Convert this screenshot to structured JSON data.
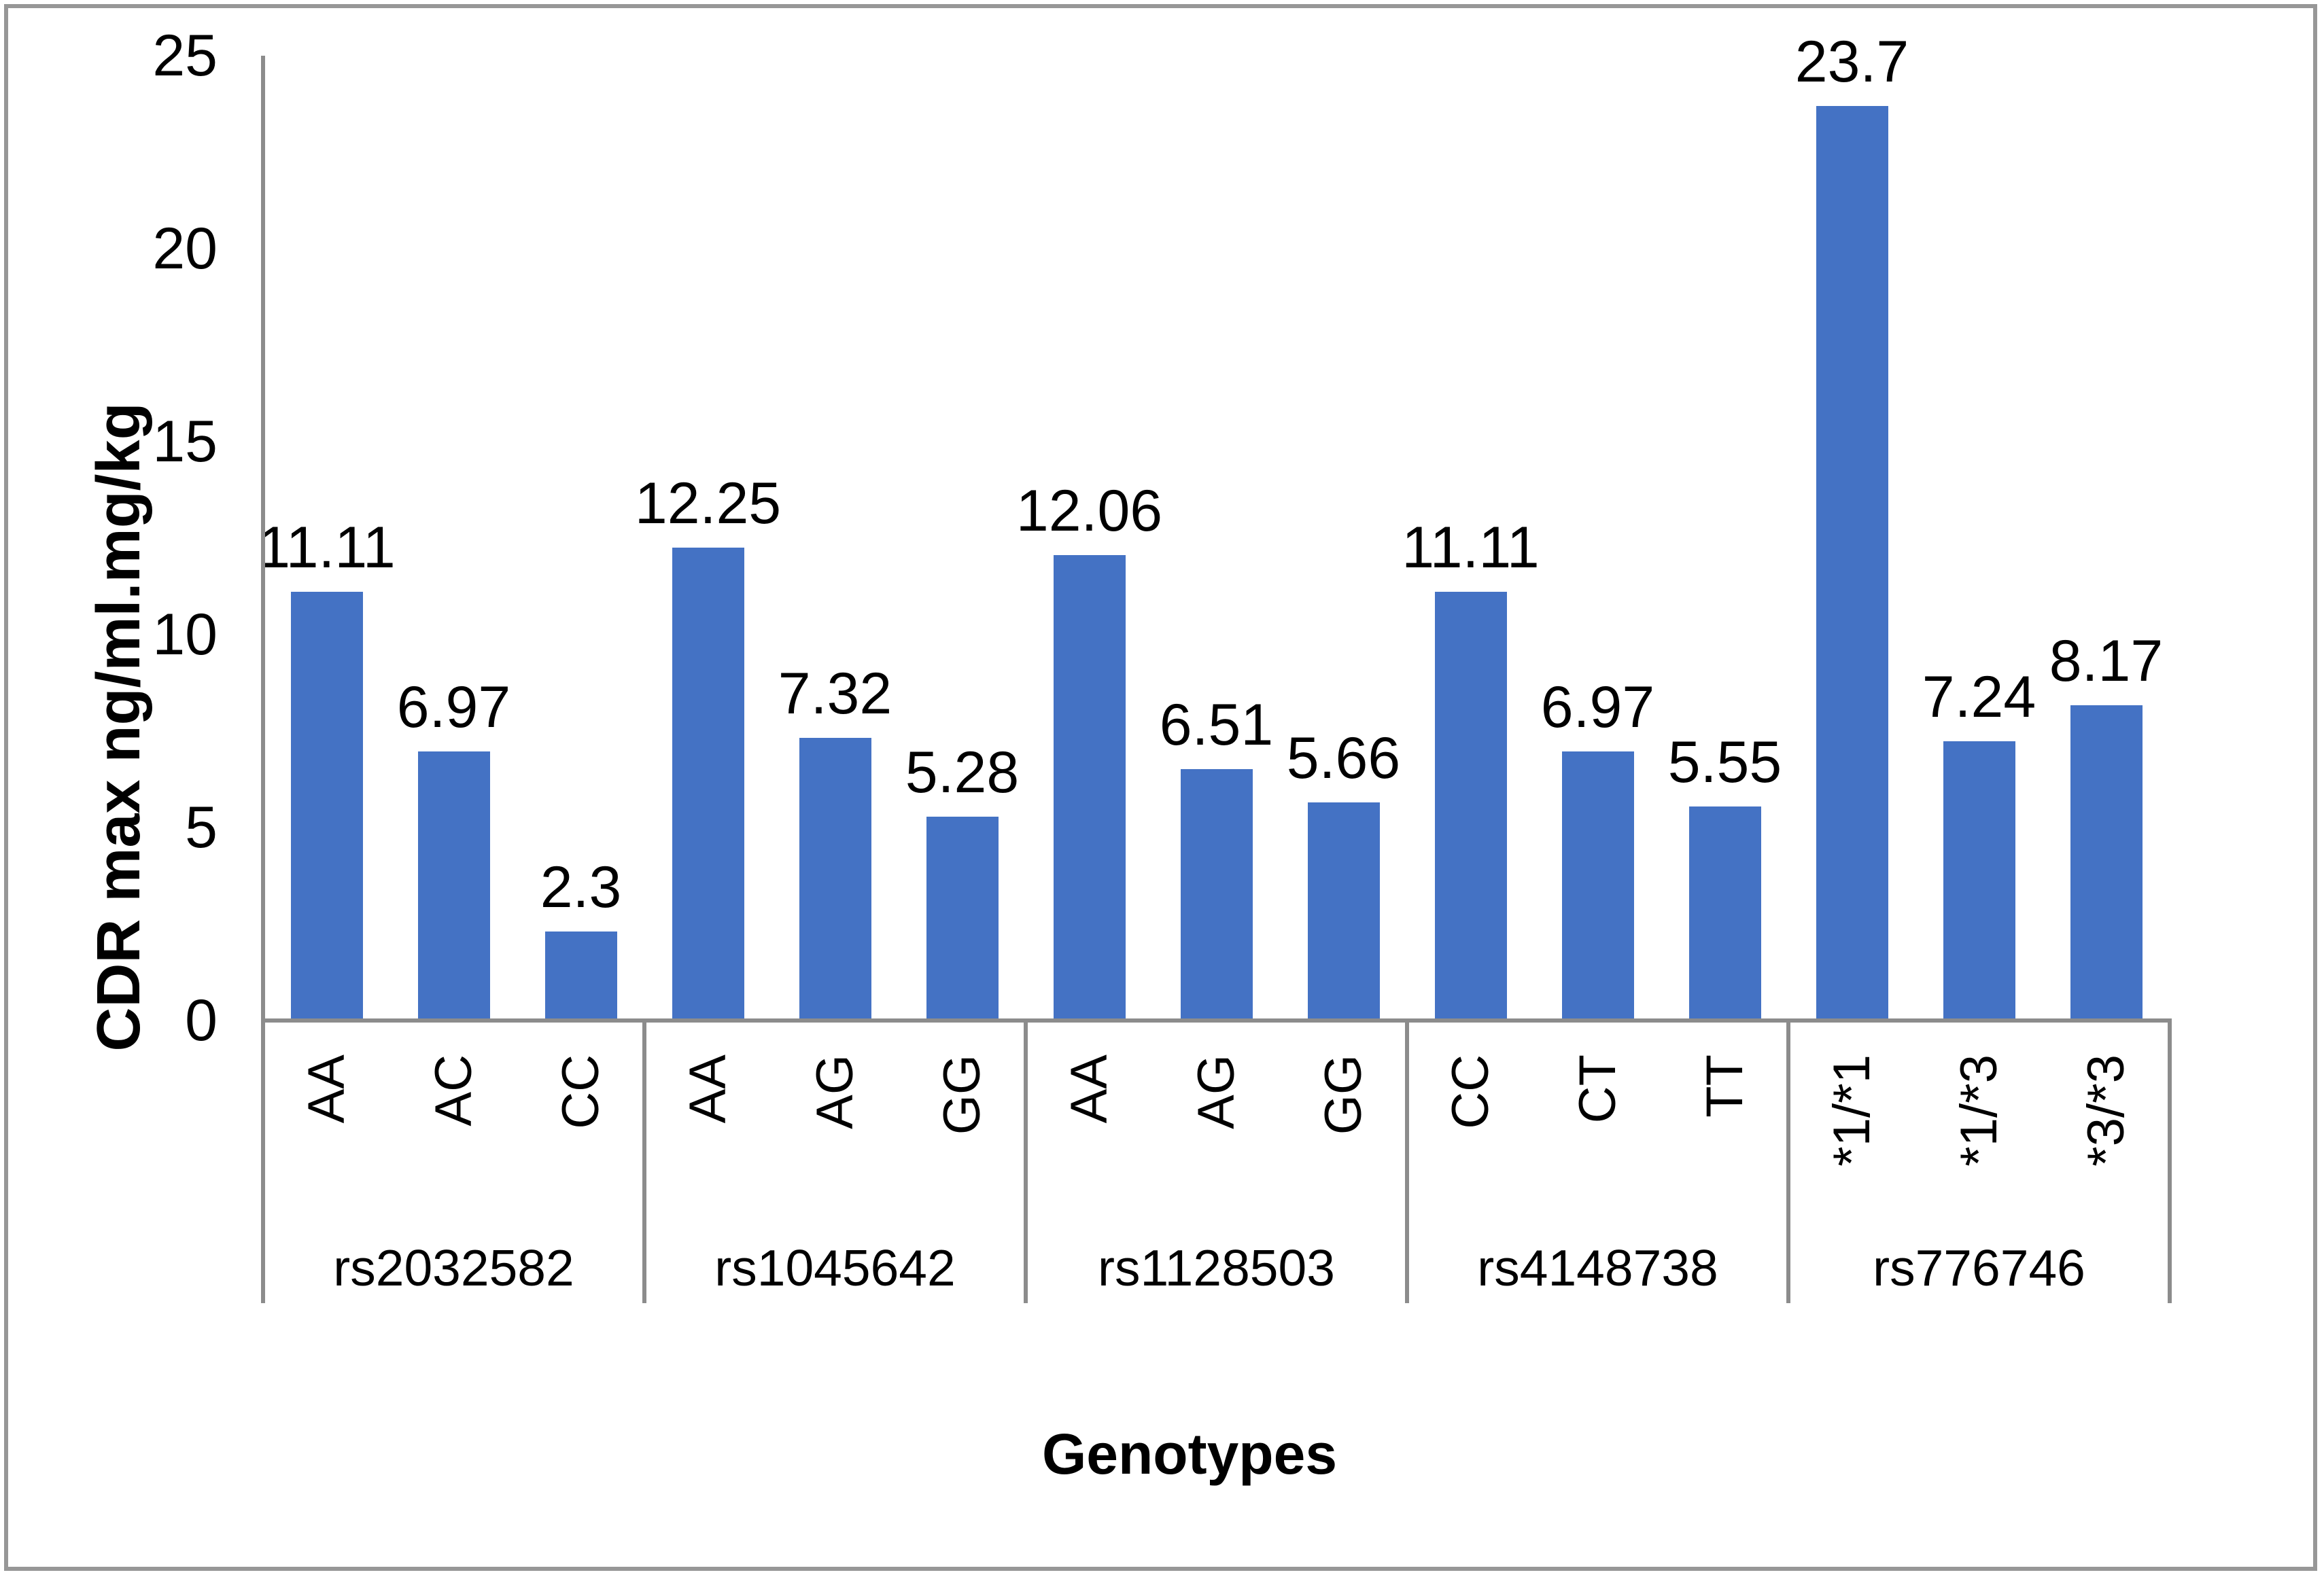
{
  "chart_data": {
    "type": "bar",
    "title": "",
    "xlabel": "Genotypes",
    "ylabel": "CDR max ng/ml.mg/kg",
    "ylim": [
      0,
      25
    ],
    "yticks": [
      0,
      5,
      10,
      15,
      20,
      25
    ],
    "grid": false,
    "legend_position": "none",
    "bar_color": "#4472C4",
    "axis_line_color": "#8C8C8C",
    "frame_color": "#979797",
    "groups": [
      {
        "label": "rs2032582",
        "categories": [
          "AA",
          "AC",
          "CC"
        ],
        "values": [
          11.11,
          6.97,
          2.3
        ]
      },
      {
        "label": "rs1045642",
        "categories": [
          "AA",
          "AG",
          "GG"
        ],
        "values": [
          12.25,
          7.32,
          5.28
        ]
      },
      {
        "label": "rs1128503",
        "categories": [
          "AA",
          "AG",
          "GG"
        ],
        "values": [
          12.06,
          6.51,
          5.66
        ]
      },
      {
        "label": "rs4148738",
        "categories": [
          "CC",
          "CT",
          "TT"
        ],
        "values": [
          11.11,
          6.97,
          5.55
        ]
      },
      {
        "label": "rs776746",
        "categories": [
          "*1/*1",
          "*1/*3",
          "*3/*3"
        ],
        "values": [
          23.7,
          7.24,
          8.17
        ]
      }
    ]
  }
}
